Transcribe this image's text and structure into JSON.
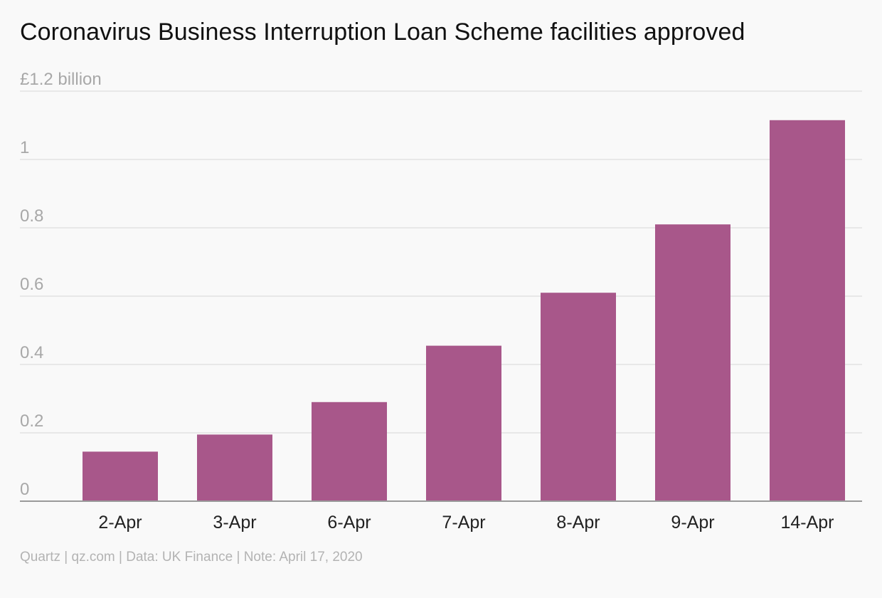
{
  "chart_data": {
    "type": "bar",
    "title": "Coronavirus Business Interruption Loan Scheme facilities approved",
    "ylabel": "",
    "xlabel": "",
    "ylim": [
      0,
      1.2
    ],
    "yticks": [
      0,
      0.2,
      0.4,
      0.6,
      0.8,
      1,
      1.2
    ],
    "ytick_labels": [
      "0",
      "0.2",
      "0.4",
      "0.6",
      "0.8",
      "1",
      "£1.2 billion"
    ],
    "categories": [
      "2-Apr",
      "3-Apr",
      "6-Apr",
      "7-Apr",
      "8-Apr",
      "9-Apr",
      "14-Apr"
    ],
    "values": [
      0.145,
      0.195,
      0.29,
      0.455,
      0.61,
      0.81,
      1.115
    ],
    "grid": true,
    "bar_color": "#a8578a"
  },
  "footer": "Quartz | qz.com | Data: UK Finance | Note: April 17, 2020"
}
